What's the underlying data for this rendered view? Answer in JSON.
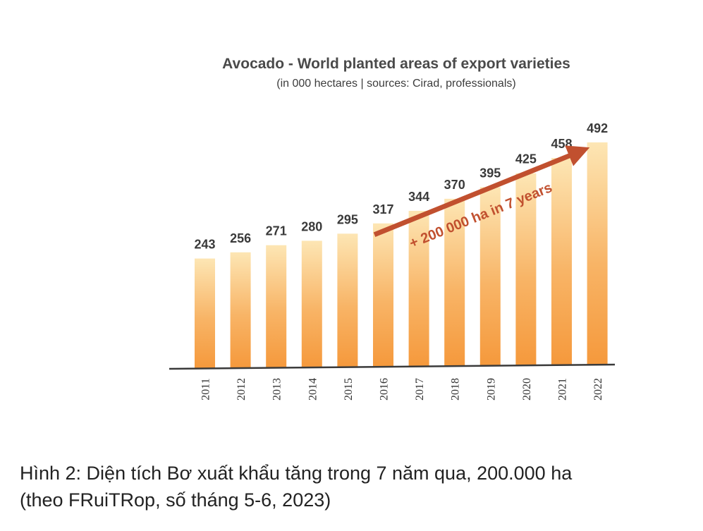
{
  "chart_data": {
    "type": "bar",
    "title": "Avocado - World planted areas of export varieties",
    "subtitle": "(in 000 hectares | sources: Cirad, professionals)",
    "categories": [
      "2011",
      "2012",
      "2013",
      "2014",
      "2015",
      "2016",
      "2017",
      "2018",
      "2019",
      "2020",
      "2021",
      "2022"
    ],
    "values": [
      243,
      256,
      271,
      280,
      295,
      317,
      344,
      370,
      395,
      425,
      458,
      492
    ],
    "ylim": [
      0,
      500
    ],
    "xlabel": "",
    "ylabel": "",
    "grid": false,
    "legend": "none",
    "annotation": {
      "text": "+ 200 000 ha in 7 years",
      "from_category": "2016",
      "to_category": "2022"
    },
    "colors": {
      "bar_top": "#fde6b4",
      "bar_bottom": "#f5993c",
      "arrow": "#c1502f",
      "axis": "#3a3a3a"
    }
  },
  "caption": {
    "line1": "Hình 2: Diện tích Bơ xuất khẩu tăng trong 7 năm qua, 200.000 ha",
    "line2": " (theo FRuiTRop, số tháng 5-6, 2023)"
  }
}
